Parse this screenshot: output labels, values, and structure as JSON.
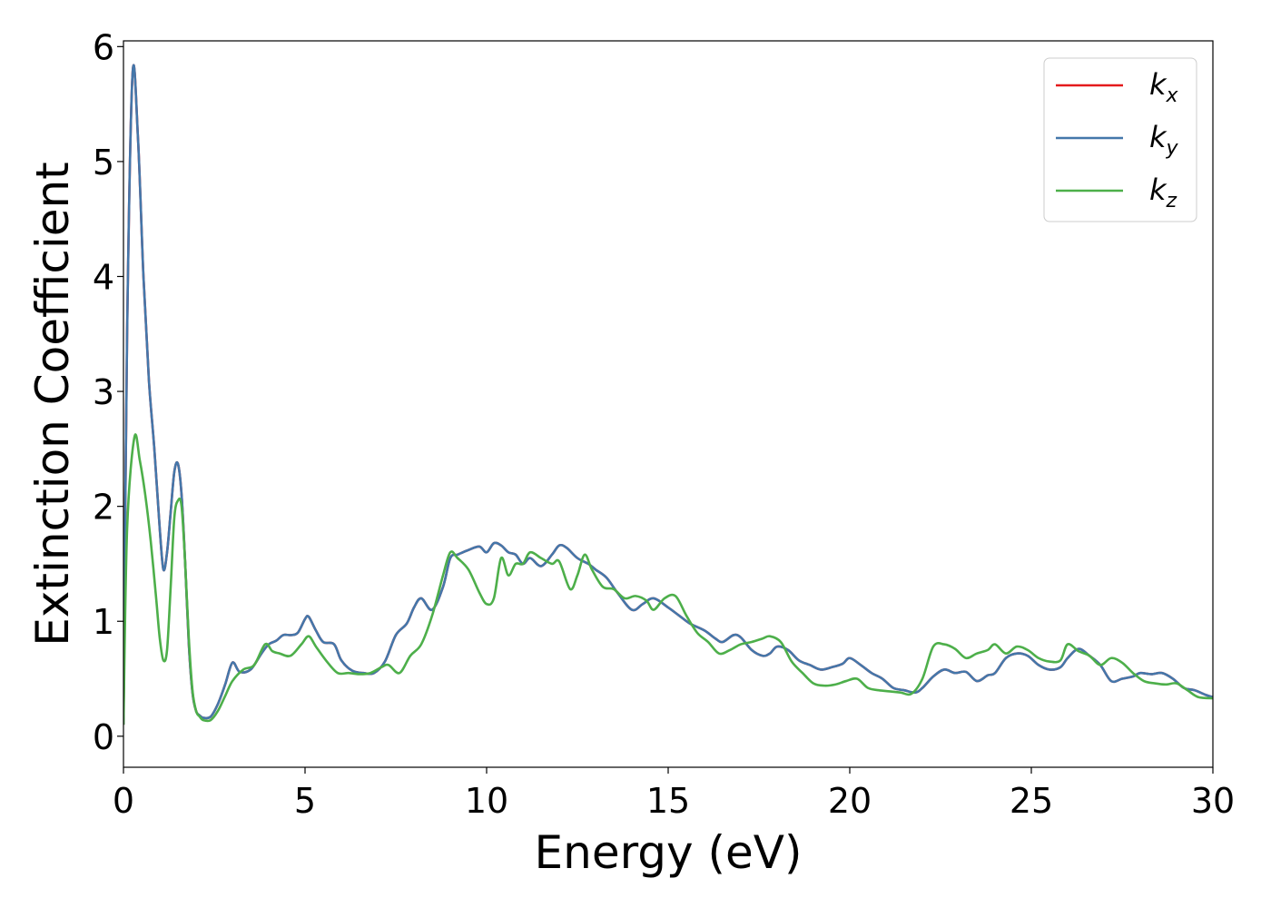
{
  "chart_data": {
    "type": "line",
    "xlabel": "Energy (eV)",
    "ylabel": "Extinction Coefficient",
    "xlim": [
      0,
      30
    ],
    "ylim": [
      -0.27,
      6.05
    ],
    "xticks": [
      0,
      5,
      10,
      15,
      20,
      25,
      30
    ],
    "yticks": [
      0,
      1,
      2,
      3,
      4,
      5,
      6
    ],
    "xtick_labels": [
      "0",
      "5",
      "10",
      "15",
      "20",
      "25",
      "30"
    ],
    "ytick_labels": [
      "0",
      "1",
      "2",
      "3",
      "4",
      "5",
      "6"
    ],
    "grid": false,
    "legend_position": "top-right",
    "series": [
      {
        "name": "k",
        "subscript": "x",
        "color": "#e41a1c",
        "x": [
          0,
          0.1,
          0.25,
          0.4,
          0.55,
          0.7,
          0.85,
          1.0,
          1.1,
          1.2,
          1.3,
          1.4,
          1.5,
          1.6,
          1.7,
          1.8,
          1.9,
          2.0,
          2.1,
          2.2,
          2.4,
          2.6,
          2.8,
          3.0,
          3.2,
          3.5,
          3.8,
          4.0,
          4.2,
          4.4,
          4.6,
          4.8,
          5.0,
          5.1,
          5.3,
          5.5,
          5.8,
          6.0,
          6.3,
          6.6,
          6.9,
          7.2,
          7.5,
          7.8,
          8.0,
          8.2,
          8.5,
          8.8,
          9.0,
          9.2,
          9.5,
          9.8,
          10.0,
          10.2,
          10.4,
          10.6,
          10.8,
          11.0,
          11.2,
          11.5,
          11.8,
          12.0,
          12.2,
          12.5,
          12.8,
          13.0,
          13.3,
          13.6,
          14.0,
          14.3,
          14.6,
          15.0,
          15.3,
          15.6,
          16.0,
          16.3,
          16.5,
          16.8,
          17.0,
          17.3,
          17.6,
          17.8,
          18.0,
          18.3,
          18.6,
          18.9,
          19.2,
          19.5,
          19.8,
          20.0,
          20.3,
          20.6,
          20.9,
          21.2,
          21.5,
          21.8,
          22.0,
          22.3,
          22.6,
          22.9,
          23.2,
          23.5,
          23.8,
          24.0,
          24.3,
          24.6,
          24.9,
          25.2,
          25.5,
          25.8,
          26.0,
          26.3,
          26.6,
          26.9,
          27.2,
          27.5,
          27.8,
          28.0,
          28.3,
          28.6,
          28.9,
          29.2,
          29.5,
          29.8,
          30.0
        ],
        "y": [
          0.1,
          3.5,
          5.76,
          5.2,
          4.0,
          3.1,
          2.5,
          1.8,
          1.45,
          1.6,
          1.95,
          2.3,
          2.37,
          2.1,
          1.5,
          0.8,
          0.38,
          0.22,
          0.18,
          0.16,
          0.17,
          0.28,
          0.45,
          0.64,
          0.56,
          0.58,
          0.72,
          0.8,
          0.83,
          0.88,
          0.88,
          0.9,
          1.02,
          1.04,
          0.92,
          0.82,
          0.8,
          0.66,
          0.57,
          0.55,
          0.55,
          0.65,
          0.88,
          0.98,
          1.12,
          1.2,
          1.1,
          1.3,
          1.55,
          1.58,
          1.62,
          1.65,
          1.6,
          1.68,
          1.66,
          1.6,
          1.58,
          1.5,
          1.55,
          1.48,
          1.58,
          1.66,
          1.64,
          1.55,
          1.5,
          1.45,
          1.38,
          1.25,
          1.1,
          1.15,
          1.2,
          1.12,
          1.05,
          0.98,
          0.92,
          0.85,
          0.82,
          0.88,
          0.86,
          0.75,
          0.7,
          0.72,
          0.78,
          0.75,
          0.66,
          0.62,
          0.58,
          0.6,
          0.63,
          0.68,
          0.62,
          0.55,
          0.5,
          0.42,
          0.4,
          0.38,
          0.42,
          0.52,
          0.58,
          0.55,
          0.56,
          0.48,
          0.53,
          0.55,
          0.68,
          0.72,
          0.7,
          0.62,
          0.58,
          0.6,
          0.68,
          0.76,
          0.7,
          0.62,
          0.48,
          0.5,
          0.52,
          0.55,
          0.54,
          0.55,
          0.5,
          0.42,
          0.4,
          0.36,
          0.34
        ]
      },
      {
        "name": "k",
        "subscript": "y",
        "color": "#4477aa",
        "x": [
          0,
          0.1,
          0.25,
          0.4,
          0.55,
          0.7,
          0.85,
          1.0,
          1.1,
          1.2,
          1.3,
          1.4,
          1.5,
          1.6,
          1.7,
          1.8,
          1.9,
          2.0,
          2.1,
          2.2,
          2.4,
          2.6,
          2.8,
          3.0,
          3.2,
          3.5,
          3.8,
          4.0,
          4.2,
          4.4,
          4.6,
          4.8,
          5.0,
          5.1,
          5.3,
          5.5,
          5.8,
          6.0,
          6.3,
          6.6,
          6.9,
          7.2,
          7.5,
          7.8,
          8.0,
          8.2,
          8.5,
          8.8,
          9.0,
          9.2,
          9.5,
          9.8,
          10.0,
          10.2,
          10.4,
          10.6,
          10.8,
          11.0,
          11.2,
          11.5,
          11.8,
          12.0,
          12.2,
          12.5,
          12.8,
          13.0,
          13.3,
          13.6,
          14.0,
          14.3,
          14.6,
          15.0,
          15.3,
          15.6,
          16.0,
          16.3,
          16.5,
          16.8,
          17.0,
          17.3,
          17.6,
          17.8,
          18.0,
          18.3,
          18.6,
          18.9,
          19.2,
          19.5,
          19.8,
          20.0,
          20.3,
          20.6,
          20.9,
          21.2,
          21.5,
          21.8,
          22.0,
          22.3,
          22.6,
          22.9,
          23.2,
          23.5,
          23.8,
          24.0,
          24.3,
          24.6,
          24.9,
          25.2,
          25.5,
          25.8,
          26.0,
          26.3,
          26.6,
          26.9,
          27.2,
          27.5,
          27.8,
          28.0,
          28.3,
          28.6,
          28.9,
          29.2,
          29.5,
          29.8,
          30.0
        ],
        "y": [
          0.1,
          3.5,
          5.76,
          5.2,
          4.0,
          3.1,
          2.5,
          1.8,
          1.45,
          1.6,
          1.95,
          2.3,
          2.37,
          2.1,
          1.5,
          0.8,
          0.38,
          0.22,
          0.18,
          0.16,
          0.17,
          0.28,
          0.45,
          0.64,
          0.56,
          0.58,
          0.72,
          0.8,
          0.83,
          0.88,
          0.88,
          0.9,
          1.02,
          1.04,
          0.92,
          0.82,
          0.8,
          0.66,
          0.57,
          0.55,
          0.55,
          0.65,
          0.88,
          0.98,
          1.12,
          1.2,
          1.1,
          1.3,
          1.55,
          1.58,
          1.62,
          1.65,
          1.6,
          1.68,
          1.66,
          1.6,
          1.58,
          1.5,
          1.55,
          1.48,
          1.58,
          1.66,
          1.64,
          1.55,
          1.5,
          1.45,
          1.38,
          1.25,
          1.1,
          1.15,
          1.2,
          1.12,
          1.05,
          0.98,
          0.92,
          0.85,
          0.82,
          0.88,
          0.86,
          0.75,
          0.7,
          0.72,
          0.78,
          0.75,
          0.66,
          0.62,
          0.58,
          0.6,
          0.63,
          0.68,
          0.62,
          0.55,
          0.5,
          0.42,
          0.4,
          0.38,
          0.42,
          0.52,
          0.58,
          0.55,
          0.56,
          0.48,
          0.53,
          0.55,
          0.68,
          0.72,
          0.7,
          0.62,
          0.58,
          0.6,
          0.68,
          0.76,
          0.7,
          0.62,
          0.48,
          0.5,
          0.52,
          0.55,
          0.54,
          0.55,
          0.5,
          0.42,
          0.4,
          0.36,
          0.34
        ]
      },
      {
        "name": "k",
        "subscript": "z",
        "color": "#4daf4a",
        "x": [
          0,
          0.1,
          0.3,
          0.45,
          0.6,
          0.75,
          0.9,
          1.0,
          1.1,
          1.2,
          1.3,
          1.4,
          1.5,
          1.6,
          1.7,
          1.8,
          1.9,
          2.0,
          2.1,
          2.2,
          2.4,
          2.6,
          2.8,
          3.0,
          3.3,
          3.6,
          3.9,
          4.1,
          4.3,
          4.6,
          4.9,
          5.1,
          5.3,
          5.6,
          5.9,
          6.2,
          6.5,
          6.8,
          7.1,
          7.3,
          7.6,
          7.9,
          8.2,
          8.5,
          8.8,
          9.0,
          9.2,
          9.5,
          9.8,
          10.0,
          10.2,
          10.4,
          10.6,
          10.8,
          11.0,
          11.2,
          11.5,
          11.8,
          12.0,
          12.3,
          12.5,
          12.7,
          12.9,
          13.2,
          13.5,
          13.8,
          14.1,
          14.4,
          14.6,
          14.9,
          15.2,
          15.5,
          15.8,
          16.1,
          16.4,
          16.7,
          17.0,
          17.3,
          17.6,
          17.8,
          18.1,
          18.4,
          18.7,
          19.0,
          19.3,
          19.6,
          19.9,
          20.2,
          20.5,
          20.8,
          21.1,
          21.4,
          21.7,
          22.0,
          22.3,
          22.6,
          22.9,
          23.2,
          23.5,
          23.8,
          24.0,
          24.3,
          24.6,
          24.9,
          25.2,
          25.5,
          25.8,
          26.0,
          26.3,
          26.6,
          26.9,
          27.2,
          27.5,
          27.8,
          28.1,
          28.4,
          28.7,
          29.0,
          29.3,
          29.6,
          30.0
        ],
        "y": [
          0.1,
          1.8,
          2.6,
          2.4,
          2.1,
          1.7,
          1.2,
          0.85,
          0.66,
          0.75,
          1.3,
          1.9,
          2.05,
          2.0,
          1.5,
          0.85,
          0.4,
          0.22,
          0.17,
          0.14,
          0.14,
          0.22,
          0.35,
          0.48,
          0.58,
          0.62,
          0.8,
          0.74,
          0.72,
          0.7,
          0.8,
          0.87,
          0.78,
          0.65,
          0.55,
          0.55,
          0.54,
          0.55,
          0.6,
          0.62,
          0.55,
          0.7,
          0.8,
          1.05,
          1.4,
          1.6,
          1.55,
          1.45,
          1.25,
          1.15,
          1.2,
          1.55,
          1.4,
          1.5,
          1.5,
          1.6,
          1.55,
          1.5,
          1.52,
          1.28,
          1.4,
          1.58,
          1.45,
          1.3,
          1.28,
          1.2,
          1.22,
          1.18,
          1.1,
          1.2,
          1.22,
          1.05,
          0.9,
          0.82,
          0.72,
          0.75,
          0.8,
          0.82,
          0.85,
          0.87,
          0.82,
          0.65,
          0.55,
          0.46,
          0.44,
          0.45,
          0.48,
          0.5,
          0.42,
          0.4,
          0.39,
          0.38,
          0.37,
          0.5,
          0.78,
          0.8,
          0.76,
          0.68,
          0.72,
          0.75,
          0.8,
          0.72,
          0.78,
          0.75,
          0.68,
          0.65,
          0.66,
          0.8,
          0.74,
          0.7,
          0.62,
          0.68,
          0.64,
          0.55,
          0.48,
          0.46,
          0.45,
          0.46,
          0.4,
          0.34,
          0.33
        ]
      }
    ]
  }
}
